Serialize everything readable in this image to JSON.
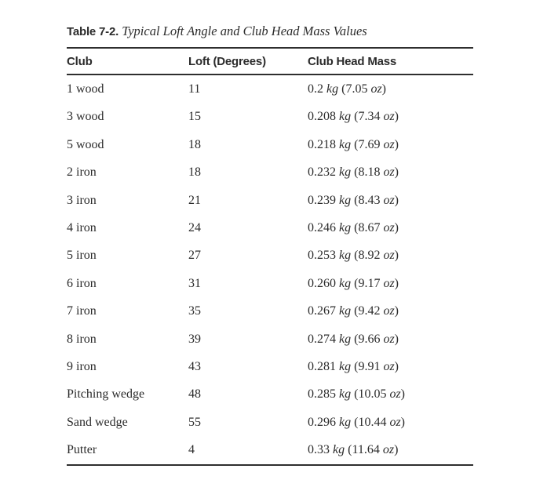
{
  "page": {
    "background": "#ffffff",
    "text_color": "#2b2b2b",
    "rule_color": "#2e2e2e"
  },
  "caption": {
    "label": "Table 7-2.",
    "title": "Typical Loft Angle and Club Head Mass Values"
  },
  "table": {
    "columns": [
      "Club",
      "Loft (Degrees)",
      "Club Head Mass"
    ],
    "units": {
      "mass_metric": "kg",
      "mass_imperial": "oz"
    },
    "rows": [
      {
        "club": "1 wood",
        "loft": "11",
        "mass_kg": "0.2",
        "mass_oz": "7.05"
      },
      {
        "club": "3 wood",
        "loft": "15",
        "mass_kg": "0.208",
        "mass_oz": "7.34"
      },
      {
        "club": "5 wood",
        "loft": "18",
        "mass_kg": "0.218",
        "mass_oz": "7.69"
      },
      {
        "club": "2 iron",
        "loft": "18",
        "mass_kg": "0.232",
        "mass_oz": "8.18"
      },
      {
        "club": "3 iron",
        "loft": "21",
        "mass_kg": "0.239",
        "mass_oz": "8.43"
      },
      {
        "club": "4 iron",
        "loft": "24",
        "mass_kg": "0.246",
        "mass_oz": "8.67"
      },
      {
        "club": "5 iron",
        "loft": "27",
        "mass_kg": "0.253",
        "mass_oz": "8.92"
      },
      {
        "club": "6 iron",
        "loft": "31",
        "mass_kg": "0.260",
        "mass_oz": "9.17"
      },
      {
        "club": "7 iron",
        "loft": "35",
        "mass_kg": "0.267",
        "mass_oz": "9.42"
      },
      {
        "club": "8 iron",
        "loft": "39",
        "mass_kg": "0.274",
        "mass_oz": "9.66"
      },
      {
        "club": "9 iron",
        "loft": "43",
        "mass_kg": "0.281",
        "mass_oz": "9.91"
      },
      {
        "club": "Pitching wedge",
        "loft": "48",
        "mass_kg": "0.285",
        "mass_oz": "10.05"
      },
      {
        "club": "Sand wedge",
        "loft": "55",
        "mass_kg": "0.296",
        "mass_oz": "10.44"
      },
      {
        "club": "Putter",
        "loft": "4",
        "mass_kg": "0.33",
        "mass_oz": "11.64"
      }
    ]
  }
}
